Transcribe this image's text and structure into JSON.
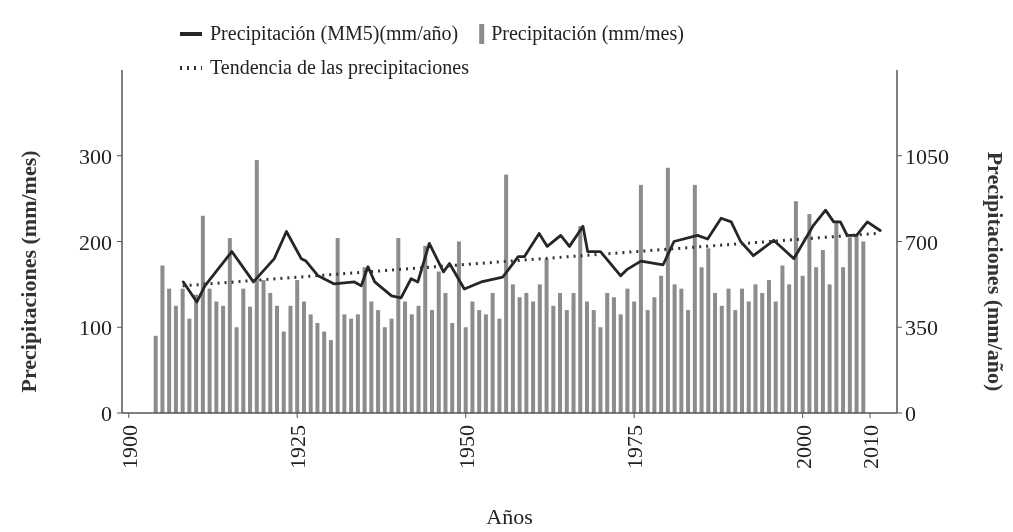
{
  "chart_data": {
    "type": "bar",
    "xlabel": "Años",
    "ylabel": "Precipitaciones (mm/mes)",
    "y2label": "Precipitaciones (mm/año)",
    "xlim": [
      1899,
      2014
    ],
    "xticks": [
      1900,
      1925,
      1950,
      1975,
      2000,
      2010
    ],
    "ylim": [
      0,
      400
    ],
    "yticks": [
      0,
      100,
      200,
      300
    ],
    "y2lim": [
      0,
      1400
    ],
    "y2ticks": [
      0,
      350,
      700,
      1050
    ],
    "grid": false,
    "legend": "top",
    "series": [
      {
        "name": "Precipitación (MM5)(mm/año)",
        "type": "line",
        "axis": "y2",
        "color": "#262626",
        "line_style": "solid",
        "x": [
          1908.1,
          1910.1,
          1911.3,
          1915.3,
          1918.5,
          1921.6,
          1923.4,
          1925.6,
          1926.3,
          1928.1,
          1930.5,
          1933.5,
          1934.5,
          1935.5,
          1936.5,
          1939,
          1940.4,
          1941.9,
          1942.9,
          1944.6,
          1946.7,
          1947.6,
          1949.8,
          1952.3,
          1955.5,
          1957.8,
          1958.7,
          1960.9,
          1962.1,
          1964.1,
          1965.4,
          1967.4,
          1968.1,
          1970,
          1973,
          1973.9,
          1976,
          1979.3,
          1980.9,
          1984.4,
          1985.9,
          1987.9,
          1989.4,
          1990.8,
          1992.7,
          1995.7,
          1998.7,
          2001.6,
          2003.4,
          2004.6,
          2005.6,
          2006.6,
          2008,
          2009.6,
          2011.5
        ],
        "values": [
          535,
          453,
          519,
          659,
          535,
          630,
          741,
          630,
          620,
          560,
          527,
          535,
          519,
          597,
          535,
          478,
          470,
          548,
          535,
          692,
          576,
          610,
          506,
          535,
          555,
          638,
          638,
          733,
          680,
          725,
          680,
          762,
          659,
          659,
          560,
          585,
          620,
          605,
          700,
          725,
          710,
          795,
          780,
          700,
          642,
          705,
          630,
          766,
          828,
          780,
          780,
          725,
          725,
          780,
          745
        ]
      },
      {
        "name": "Precipitación (mm/mes)",
        "axis": "y",
        "color": "#8c8c8c",
        "x": [
          1904,
          1905,
          1906,
          1907,
          1908,
          1909,
          1910,
          1911,
          1912,
          1913,
          1914,
          1915,
          1916,
          1917,
          1918,
          1919,
          1920,
          1921,
          1922,
          1923,
          1924,
          1925,
          1926,
          1927,
          1928,
          1929,
          1930,
          1931,
          1932,
          1933,
          1934,
          1935,
          1936,
          1937,
          1938,
          1939,
          1940,
          1941,
          1942,
          1943,
          1944,
          1945,
          1946,
          1947,
          1948,
          1949,
          1950,
          1951,
          1952,
          1953,
          1954,
          1955,
          1956,
          1957,
          1958,
          1959,
          1960,
          1961,
          1962,
          1963,
          1964,
          1965,
          1966,
          1967,
          1968,
          1969,
          1970,
          1971,
          1972,
          1973,
          1974,
          1975,
          1976,
          1977,
          1978,
          1979,
          1980,
          1981,
          1982,
          1983,
          1984,
          1985,
          1986,
          1987,
          1988,
          1989,
          1990,
          1991,
          1992,
          1993,
          1994,
          1995,
          1996,
          1997,
          1998,
          1999,
          2000,
          2001,
          2002,
          2003,
          2004,
          2005,
          2006,
          2007,
          2008,
          2009
        ],
        "values": [
          90,
          172,
          145,
          125,
          145,
          110,
          138,
          230,
          145,
          130,
          125,
          204,
          100,
          145,
          124,
          295,
          155,
          140,
          125,
          95,
          125,
          155,
          130,
          115,
          105,
          95,
          85,
          204,
          115,
          110,
          115,
          170,
          130,
          120,
          100,
          110,
          204,
          130,
          115,
          125,
          195,
          120,
          165,
          140,
          105,
          200,
          100,
          130,
          120,
          115,
          140,
          110,
          278,
          150,
          135,
          140,
          130,
          150,
          180,
          125,
          140,
          120,
          140,
          218,
          130,
          120,
          100,
          140,
          135,
          115,
          145,
          130,
          266,
          120,
          135,
          160,
          286,
          150,
          145,
          120,
          266,
          170,
          192,
          140,
          125,
          145,
          120,
          145,
          130,
          150,
          140,
          155,
          130,
          172,
          150,
          247,
          160,
          232,
          170,
          190,
          150,
          224,
          170,
          205,
          207,
          200
        ]
      },
      {
        "name": "Tendencia de las precipitaciones",
        "type": "line",
        "axis": "y2",
        "color": "#333333",
        "line_style": "dotted",
        "x": [
          1908,
          2011
        ],
        "values": [
          519,
          733
        ]
      }
    ]
  }
}
